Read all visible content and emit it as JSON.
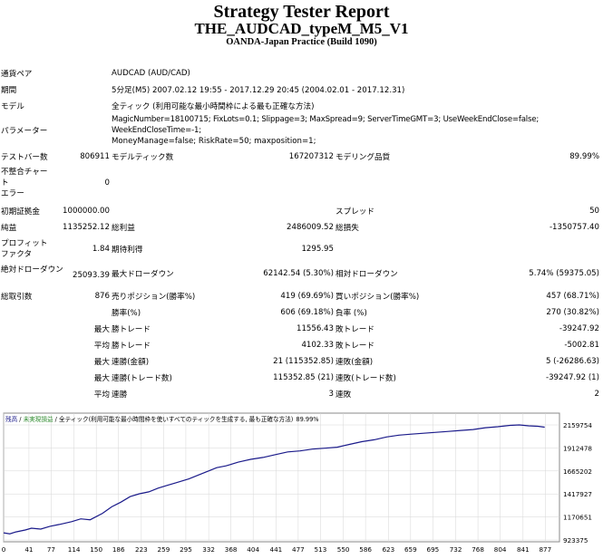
{
  "header": {
    "title": "Strategy Tester Report",
    "ea_name": "THE_AUDCAD_typeM_M5_V1",
    "server": "OANDA-Japan Practice (Build 1090)"
  },
  "info": {
    "symbol_label": "通貨ペア",
    "symbol_value": "AUDCAD (AUD/CAD)",
    "period_label": "期間",
    "period_value": "5分足(M5) 2007.02.12 19:55 - 2017.12.29 20:45 (2004.02.01 - 2017.12.31)",
    "model_label": "モデル",
    "model_value": "全ティック (利用可能な最小時間枠による最も正確な方法)",
    "params_label": "パラメーター",
    "params_line1": "MagicNumber=18100715; FixLots=0.1; Slippage=3; MaxSpread=9; ServerTimeGMT=3; UseWeekEndClose=false; WeekEndCloseTime=-1;",
    "params_line2": "MoneyManage=false; RiskRate=50; maxposition=1;"
  },
  "stats": {
    "bars_label": "テストバー数",
    "bars_value": "806911",
    "ticks_label": "モデルティック数",
    "ticks_value": "167207312",
    "quality_label": "モデリング品質",
    "quality_value": "89.99%",
    "mismatch_label_1": "不整合チャート",
    "mismatch_label_2": "エラー",
    "mismatch_value": "0",
    "deposit_label": "初期証拠金",
    "deposit_value": "1000000.00",
    "spread_label": "スプレッド",
    "spread_value": "50",
    "netprofit_label": "純益",
    "netprofit_value": "1135252.12",
    "grossprofit_label": "総利益",
    "grossprofit_value": "2486009.52",
    "grossloss_label": "総損失",
    "grossloss_value": "-1350757.40",
    "pf_label_1": "プロフィット",
    "pf_label_2": "ファクタ",
    "pf_value": "1.84",
    "expected_label": "期待利得",
    "expected_value": "1295.95",
    "absdd_label": "絶対ドローダウン",
    "absdd_value": "25093.39",
    "maxdd_label": "最大ドローダウン",
    "maxdd_value": "62142.54 (5.30%)",
    "reldd_label": "相対ドローダウン",
    "reldd_value": "5.74% (59375.05)",
    "trades_label": "総取引数",
    "trades_value": "876",
    "short_label": "売りポジション(勝率%)",
    "short_value": "419 (69.69%)",
    "long_label": "買いポジション(勝率%)",
    "long_value": "457 (68.71%)",
    "win_label": "勝率(%)",
    "win_value": "606 (69.18%)",
    "loss_label": "負率 (%)",
    "loss_value": "270 (30.82%)",
    "largest_prefix": "最大",
    "largest_win_label": "勝トレード",
    "largest_win_value": "11556.43",
    "largest_loss_label": "敗トレード",
    "largest_loss_value": "-39247.92",
    "average_prefix": "平均",
    "avg_win_label": "勝トレード",
    "avg_win_value": "4102.33",
    "avg_loss_label": "敗トレード",
    "avg_loss_value": "-5002.81",
    "max_prefix_1": "最大",
    "max_consec_wins_label": "連勝(金額)",
    "max_consec_wins_value": "21 (115352.85)",
    "max_consec_losses_label": "連敗(金額)",
    "max_consec_losses_value": "5 (-26286.63)",
    "max_prefix_2": "最大",
    "max_consec_profit_label": "連勝(トレード数)",
    "max_consec_profit_value": "115352.85 (21)",
    "max_consec_loss_label": "連敗(トレード数)",
    "max_consec_loss_value": "-39247.92 (1)",
    "avg_prefix_2": "平均",
    "avg_consec_wins_label": "連勝",
    "avg_consec_wins_value": "3",
    "avg_consec_losses_label": "連敗",
    "avg_consec_losses_value": "2"
  },
  "chart_data": {
    "type": "line",
    "legend_balance": "残高",
    "legend_sep1": " / ",
    "legend_equity": "未実現損益",
    "legend_sep2": " / ",
    "legend_model": "全ティック(利用可能な最小時間枠を使いすべてのティックを生成する, 最も正確な方法)",
    "legend_quality": "89.99%",
    "color_balance": "#1a1a8a",
    "color_equity": "#2e8b2e",
    "color_grid": "#d6d6d6",
    "x_ticks": [
      0,
      41,
      77,
      114,
      150,
      186,
      223,
      259,
      295,
      332,
      368,
      404,
      441,
      477,
      513,
      550,
      586,
      623,
      659,
      695,
      732,
      768,
      804,
      841,
      877
    ],
    "y_ticks": [
      923375,
      1170651,
      1417927,
      1665202,
      1912478,
      2159754
    ],
    "ylim": [
      923375,
      2159754
    ],
    "xlim": [
      0,
      900
    ],
    "series": [
      {
        "values": [
          [
            0,
            1000000
          ],
          [
            10,
            990000
          ],
          [
            20,
            1010000
          ],
          [
            35,
            1030000
          ],
          [
            45,
            1050000
          ],
          [
            60,
            1040000
          ],
          [
            75,
            1070000
          ],
          [
            90,
            1090000
          ],
          [
            110,
            1120000
          ],
          [
            125,
            1150000
          ],
          [
            140,
            1140000
          ],
          [
            160,
            1210000
          ],
          [
            175,
            1280000
          ],
          [
            190,
            1330000
          ],
          [
            205,
            1390000
          ],
          [
            220,
            1420000
          ],
          [
            235,
            1440000
          ],
          [
            250,
            1480000
          ],
          [
            265,
            1510000
          ],
          [
            280,
            1540000
          ],
          [
            300,
            1580000
          ],
          [
            315,
            1620000
          ],
          [
            330,
            1660000
          ],
          [
            345,
            1700000
          ],
          [
            360,
            1720000
          ],
          [
            380,
            1760000
          ],
          [
            400,
            1790000
          ],
          [
            420,
            1810000
          ],
          [
            440,
            1840000
          ],
          [
            460,
            1870000
          ],
          [
            480,
            1880000
          ],
          [
            500,
            1900000
          ],
          [
            520,
            1910000
          ],
          [
            540,
            1920000
          ],
          [
            560,
            1950000
          ],
          [
            580,
            1980000
          ],
          [
            600,
            2000000
          ],
          [
            620,
            2030000
          ],
          [
            640,
            2050000
          ],
          [
            660,
            2060000
          ],
          [
            680,
            2070000
          ],
          [
            700,
            2080000
          ],
          [
            720,
            2090000
          ],
          [
            740,
            2100000
          ],
          [
            760,
            2110000
          ],
          [
            780,
            2130000
          ],
          [
            800,
            2140000
          ],
          [
            820,
            2155000
          ],
          [
            835,
            2159754
          ],
          [
            850,
            2150000
          ],
          [
            865,
            2145000
          ],
          [
            876,
            2135252
          ]
        ]
      }
    ]
  }
}
